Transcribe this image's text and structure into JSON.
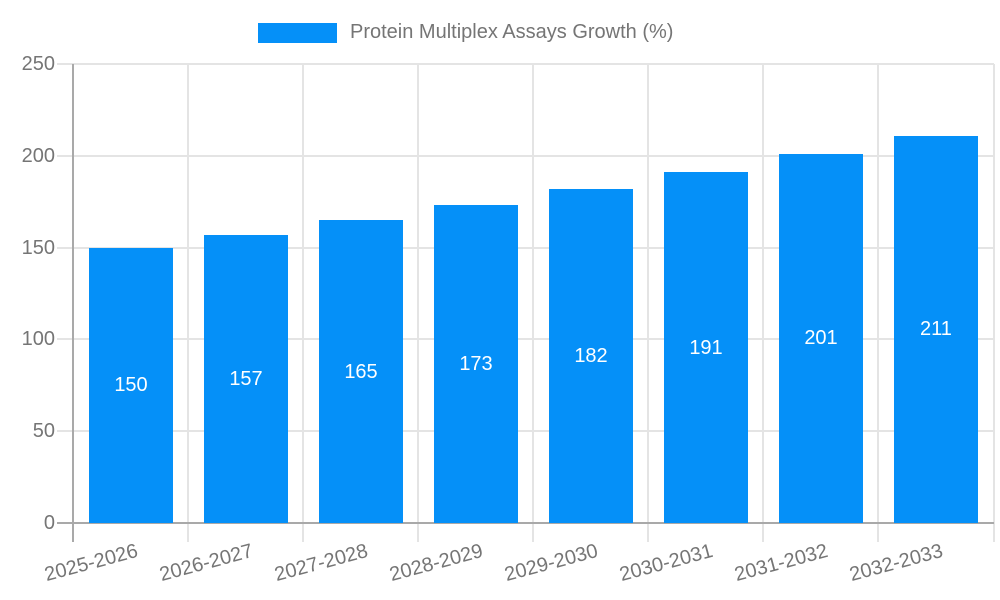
{
  "legend": {
    "label": "Protein Multiplex Assays Growth (%)"
  },
  "chart_data": {
    "type": "bar",
    "title": "Protein Multiplex Assays Growth (%)",
    "series_name": "Protein Multiplex Assays Growth (%)",
    "categories": [
      "2025-2026",
      "2026-2027",
      "2027-2028",
      "2028-2029",
      "2029-2030",
      "2030-2031",
      "2031-2032",
      "2032-2033"
    ],
    "values": [
      150,
      157,
      165,
      173,
      182,
      191,
      201,
      211
    ],
    "xlabel": "",
    "ylabel": "",
    "ylim": [
      0,
      250
    ],
    "yticks": [
      0,
      50,
      100,
      150,
      200,
      250
    ],
    "grid": true,
    "legend_position": "top",
    "x_label_rotation": -15,
    "colors": {
      "bar": "#0590f8",
      "gridline": "#e4e4e4",
      "axis_line": "#a9a9a9",
      "axis_text": "#757575",
      "value_label": "#ffffff",
      "background": "#ffffff"
    }
  }
}
